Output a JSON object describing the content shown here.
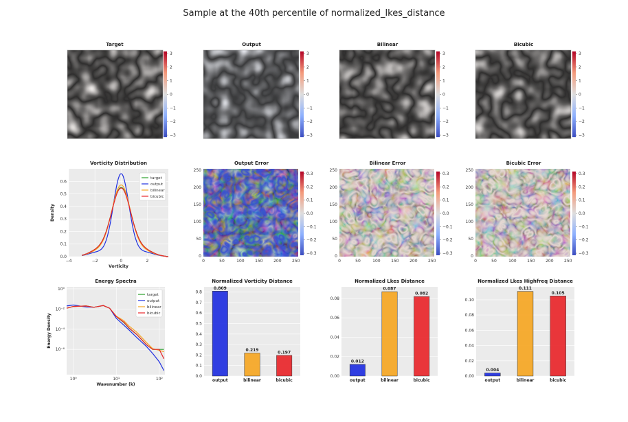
{
  "suptitle": "Sample at the 40th percentile of normalized_lkes_distance",
  "fields": {
    "titles": [
      "Target",
      "Output",
      "Bilinear",
      "Bicubic"
    ],
    "colorbar_ticks": [
      "3",
      "2",
      "1",
      "0",
      "−1",
      "−2",
      "−3"
    ]
  },
  "errors": {
    "titles": [
      "Output Error",
      "Bilinear Error",
      "Bicubic Error"
    ],
    "colorbar_ticks": [
      "0.3",
      "0.2",
      "0.1",
      "0.0",
      "−0.1",
      "−0.2",
      "−0.3"
    ],
    "x_ticks": [
      "0",
      "50",
      "100",
      "150",
      "200",
      "250"
    ],
    "y_ticks": [
      "250",
      "200",
      "150",
      "100",
      "50",
      "0"
    ]
  },
  "colors": {
    "target": "#2ca02c",
    "output": "#1f2fe0",
    "bilinear": "#f5a623",
    "bicubic": "#e8262a",
    "cmap_neg": "#3b4cc0",
    "cmap_mid": "#dddddd",
    "cmap_pos": "#b40426",
    "panel_bg": "#ebebeb"
  },
  "chart_data": [
    {
      "type": "line",
      "title": "Vorticity Distribution",
      "xlabel": "Vorticity",
      "ylabel": "Density",
      "xlim": [
        -4,
        3.6
      ],
      "ylim": [
        0,
        0.7
      ],
      "x_ticks": [
        "−4",
        "−2",
        "0",
        "2"
      ],
      "y_ticks": [
        "0.0",
        "0.1",
        "0.2",
        "0.3",
        "0.4",
        "0.5",
        "0.6"
      ],
      "legend": "top-right",
      "series": [
        {
          "name": "target",
          "peak": 0.55,
          "sigma": 0.75,
          "tail": 0.045
        },
        {
          "name": "output",
          "peak": 0.66,
          "sigma": 0.6,
          "tail": 0.035
        },
        {
          "name": "bilinear",
          "peak": 0.57,
          "sigma": 0.73,
          "tail": 0.04
        },
        {
          "name": "bicubic",
          "peak": 0.545,
          "sigma": 0.75,
          "tail": 0.045
        }
      ]
    },
    {
      "type": "line",
      "title": "Energy Spectra",
      "xlabel": "Wavenumber (k)",
      "ylabel": "Energy Density",
      "xscale": "log",
      "yscale": "log",
      "x_ticks": [
        "10⁰",
        "10¹",
        "10²"
      ],
      "y_ticks": [
        "10⁰",
        "10⁻²",
        "10⁻⁴",
        "10⁻⁶"
      ],
      "legend": "top-right",
      "series": [
        {
          "name": "target",
          "k": [
            0.7,
            1,
            2,
            3,
            5,
            7,
            10,
            15,
            20,
            30,
            50,
            70,
            100,
            128
          ],
          "E": [
            0.012,
            0.018,
            0.02,
            0.015,
            0.022,
            0.012,
            0.0018,
            0.00045,
            0.00012,
            3e-05,
            3e-06,
            1e-06,
            1e-06,
            1e-06
          ]
        },
        {
          "name": "output",
          "k": [
            0.7,
            1,
            2,
            3,
            5,
            7,
            10,
            15,
            20,
            30,
            50,
            70,
            100,
            128
          ],
          "E": [
            0.02,
            0.025,
            0.016,
            0.015,
            0.022,
            0.012,
            0.0012,
            0.00025,
            8e-05,
            1.5e-05,
            2e-06,
            4e-07,
            6e-08,
            8e-09
          ]
        },
        {
          "name": "bilinear",
          "k": [
            0.7,
            1,
            2,
            3,
            5,
            7,
            10,
            15,
            20,
            30,
            50,
            70,
            100,
            128
          ],
          "E": [
            0.012,
            0.018,
            0.02,
            0.015,
            0.022,
            0.012,
            0.002,
            0.0007,
            0.0002,
            5e-05,
            5e-06,
            1.2e-06,
            8e-07,
            6e-07
          ]
        },
        {
          "name": "bicubic",
          "k": [
            0.7,
            1,
            2,
            3,
            5,
            7,
            10,
            15,
            20,
            30,
            50,
            70,
            100,
            128
          ],
          "E": [
            0.012,
            0.018,
            0.02,
            0.015,
            0.022,
            0.012,
            0.0018,
            0.0005,
            0.00013,
            3e-05,
            3e-06,
            1e-06,
            1e-06,
            1.2e-07
          ]
        }
      ]
    },
    {
      "type": "bar",
      "title": "Normalized Vorticity Distance",
      "categories": [
        "output",
        "bilinear",
        "bicubic"
      ],
      "values": [
        0.809,
        0.219,
        0.197
      ],
      "labels": [
        "0.809",
        "0.219",
        "0.197"
      ],
      "ylim": [
        0,
        0.85
      ],
      "y_ticks": [
        "0.0",
        "0.1",
        "0.2",
        "0.3",
        "0.4",
        "0.5",
        "0.6",
        "0.7",
        "0.8"
      ],
      "y_tick_values": [
        0,
        0.1,
        0.2,
        0.3,
        0.4,
        0.5,
        0.6,
        0.7,
        0.8
      ]
    },
    {
      "type": "bar",
      "title": "Normalized Lkes Distance",
      "categories": [
        "output",
        "bilinear",
        "bicubic"
      ],
      "values": [
        0.012,
        0.087,
        0.082
      ],
      "labels": [
        "0.012",
        "0.087",
        "0.082"
      ],
      "ylim": [
        0,
        0.092
      ],
      "y_ticks": [
        "0.00",
        "0.02",
        "0.04",
        "0.06",
        "0.08"
      ],
      "y_tick_values": [
        0,
        0.02,
        0.04,
        0.06,
        0.08
      ]
    },
    {
      "type": "bar",
      "title": "Normalized Lkes Highfreq Distance",
      "categories": [
        "output",
        "bilinear",
        "bicubic"
      ],
      "values": [
        0.004,
        0.111,
        0.105
      ],
      "labels": [
        "0.004",
        "0.111",
        "0.105"
      ],
      "ylim": [
        0,
        0.117
      ],
      "y_ticks": [
        "0.00",
        "0.02",
        "0.04",
        "0.06",
        "0.08",
        "0.10"
      ],
      "y_tick_values": [
        0,
        0.02,
        0.04,
        0.06,
        0.08,
        0.1
      ]
    }
  ]
}
